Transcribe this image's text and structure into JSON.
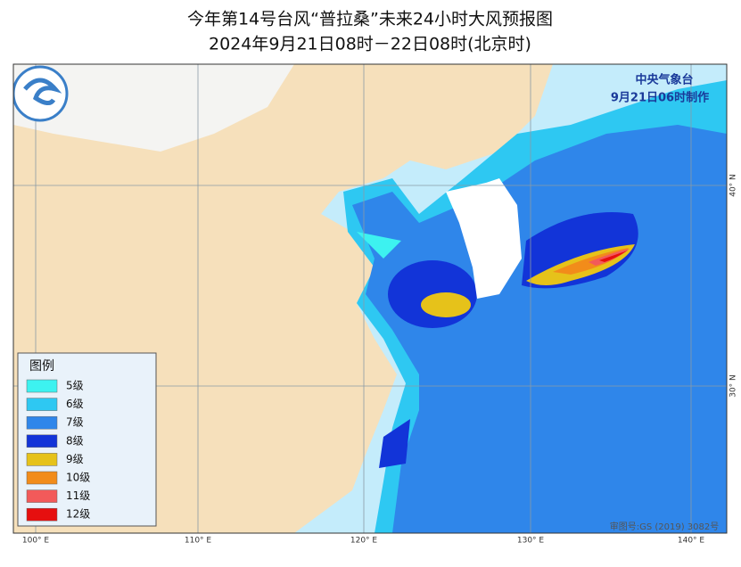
{
  "header": {
    "title": "今年第14号台风“普拉桑”未来24小时大风预报图",
    "subtitle": "2024年9月21日08时－22日08时(北京时)"
  },
  "agency": {
    "name": "中央气象台",
    "issued": "9月21日06时制作"
  },
  "legend": {
    "title": "图例",
    "items": [
      {
        "label": "5级",
        "color": "#3df2f0"
      },
      {
        "label": "6级",
        "color": "#2ec8f2"
      },
      {
        "label": "7级",
        "color": "#2f86ea"
      },
      {
        "label": "8级",
        "color": "#1234d8"
      },
      {
        "label": "9级",
        "color": "#e6c21a"
      },
      {
        "label": "10级",
        "color": "#f28c1a"
      },
      {
        "label": "11级",
        "color": "#f25a5a"
      },
      {
        "label": "12级",
        "color": "#e60f0f"
      }
    ]
  },
  "axes": {
    "lon": [
      "100° E",
      "110° E",
      "120° E",
      "130° E",
      "140° E"
    ],
    "lat": [
      "40° N",
      "30° N"
    ]
  },
  "footer": {
    "review": "审图号:GS (2019) 3082号"
  }
}
